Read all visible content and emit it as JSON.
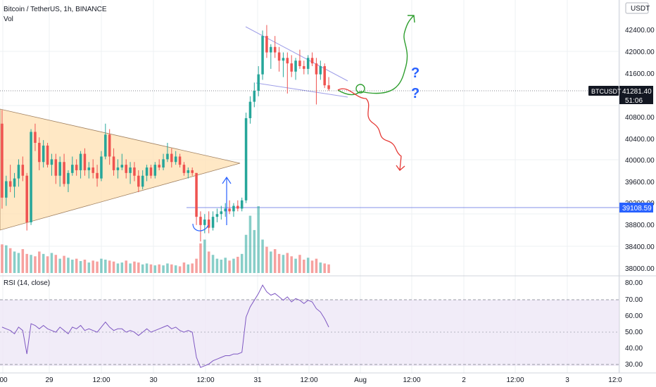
{
  "header": {
    "title": "Bitcoin / TetherUS, 1h, BINANCE",
    "vol_label": "Vol"
  },
  "price_axis": {
    "currency": "USDT",
    "ticks": [
      "42400.00",
      "42000.00",
      "41600.00",
      "40800.00",
      "40400.00",
      "40000.00",
      "39600.00",
      "39200.00",
      "38800.00",
      "38400.00",
      "38000.00"
    ]
  },
  "rsi": {
    "label": "RSI (14, close)",
    "ticks": [
      "80.00",
      "70.00",
      "60.00",
      "50.00",
      "40.00",
      "30.00"
    ]
  },
  "time_axis": {
    "ticks": [
      "00",
      "29",
      "12:00",
      "30",
      "12:00",
      "31",
      "12:00",
      "Aug",
      "12:00",
      "2",
      "12:00",
      "3",
      "12:0"
    ]
  },
  "current_price": {
    "symbol": "BTCUSDT",
    "price": "41281.40",
    "countdown": "51:06"
  },
  "hline_price": "39108.59",
  "annotation_marks": [
    "?",
    "?"
  ],
  "colors": {
    "up": "#26a69a",
    "down": "#ef5350",
    "vol_up": "#80cbc4",
    "vol_down": "#f7a9a7",
    "rsi_line": "#7e57c2",
    "rsi_band": "#ede7f6",
    "triangle_fill": "#ffe0b2",
    "wedge": "#9e9ee8",
    "bullish_arrow": "#2e9e2e",
    "bearish_arrow": "#e53935",
    "blue_mark": "#2962ff"
  },
  "chart_data": {
    "type": "candlestick",
    "series": [
      {
        "name": "price",
        "ohlc": [
          [
            40650,
            40900,
            39100,
            39300
          ],
          [
            39300,
            39700,
            39150,
            39600
          ],
          [
            39600,
            39900,
            39400,
            39500
          ],
          [
            39500,
            39750,
            39300,
            39650
          ],
          [
            39650,
            40000,
            39500,
            39900
          ],
          [
            39900,
            40050,
            39600,
            39700
          ],
          [
            39700,
            39750,
            38700,
            38850
          ],
          [
            38850,
            40550,
            38800,
            40500
          ],
          [
            40500,
            40650,
            40150,
            40300
          ],
          [
            40300,
            40400,
            39800,
            39950
          ],
          [
            39950,
            40350,
            39850,
            40250
          ],
          [
            40250,
            40300,
            39850,
            39900
          ],
          [
            39900,
            40100,
            39700,
            40000
          ],
          [
            40000,
            40100,
            39550,
            39700
          ],
          [
            39700,
            40050,
            39500,
            39950
          ],
          [
            39950,
            40100,
            39500,
            39550
          ],
          [
            39550,
            39800,
            39400,
            39750
          ],
          [
            39750,
            40050,
            39700,
            39900
          ],
          [
            39900,
            40000,
            39700,
            39800
          ],
          [
            39800,
            40150,
            39650,
            40100
          ],
          [
            40100,
            40200,
            39700,
            39800
          ],
          [
            39800,
            39950,
            39650,
            39850
          ],
          [
            39850,
            40000,
            39650,
            39750
          ],
          [
            39750,
            39900,
            39500,
            39650
          ],
          [
            39650,
            40150,
            39600,
            40050
          ],
          [
            40050,
            40650,
            40000,
            40450
          ],
          [
            40450,
            40550,
            39900,
            40050
          ],
          [
            40050,
            40200,
            39700,
            39800
          ],
          [
            39800,
            40000,
            39650,
            39850
          ],
          [
            39850,
            40100,
            39800,
            39900
          ],
          [
            39900,
            40000,
            39650,
            39750
          ],
          [
            39750,
            39950,
            39550,
            39850
          ],
          [
            39850,
            39950,
            39600,
            39700
          ],
          [
            39700,
            39800,
            39400,
            39500
          ],
          [
            39500,
            39800,
            39450,
            39700
          ],
          [
            39700,
            39900,
            39600,
            39850
          ],
          [
            39850,
            39900,
            39650,
            39700
          ],
          [
            39700,
            39950,
            39650,
            39900
          ],
          [
            39900,
            40000,
            39800,
            39850
          ],
          [
            39850,
            40100,
            39800,
            40000
          ],
          [
            40000,
            40300,
            39950,
            40100
          ],
          [
            40100,
            40200,
            39850,
            39950
          ],
          [
            39950,
            40150,
            39900,
            40050
          ],
          [
            40050,
            40100,
            39850,
            39900
          ],
          [
            39900,
            39950,
            39700,
            39750
          ],
          [
            39750,
            39850,
            39650,
            39800
          ],
          [
            39800,
            39850,
            39700,
            39750
          ],
          [
            39750,
            39750,
            38800,
            38950
          ],
          [
            38950,
            39050,
            38500,
            38800
          ],
          [
            38800,
            39000,
            38650,
            38900
          ],
          [
            38900,
            39050,
            38650,
            38750
          ],
          [
            38750,
            39050,
            38700,
            38950
          ],
          [
            38950,
            39100,
            38850,
            39000
          ],
          [
            39000,
            39150,
            38900,
            39050
          ],
          [
            39050,
            39200,
            38950,
            39100
          ],
          [
            39100,
            39250,
            39000,
            39050
          ],
          [
            39050,
            39200,
            38950,
            39150
          ],
          [
            39150,
            39250,
            39050,
            39100
          ],
          [
            39100,
            39300,
            39050,
            39250
          ],
          [
            39250,
            40850,
            39200,
            40750
          ],
          [
            40750,
            41150,
            40650,
            41050
          ],
          [
            41050,
            41400,
            40950,
            41250
          ],
          [
            41250,
            41700,
            41150,
            41550
          ],
          [
            41550,
            42350,
            41450,
            42250
          ],
          [
            42250,
            42450,
            41850,
            41950
          ],
          [
            41950,
            42100,
            41650,
            42050
          ],
          [
            42050,
            42250,
            41850,
            41950
          ],
          [
            41950,
            42050,
            41600,
            41800
          ],
          [
            41800,
            41950,
            41500,
            41850
          ],
          [
            41850,
            41950,
            41200,
            41750
          ],
          [
            41750,
            41900,
            41500,
            41600
          ],
          [
            41600,
            41850,
            41450,
            41800
          ],
          [
            41800,
            42000,
            41650,
            41700
          ],
          [
            41700,
            41800,
            41550,
            41650
          ],
          [
            41650,
            41900,
            41550,
            41850
          ],
          [
            41850,
            41950,
            41700,
            41750
          ],
          [
            41750,
            41850,
            41000,
            41550
          ],
          [
            41550,
            41800,
            41450,
            41700
          ],
          [
            41700,
            41750,
            41300,
            41350
          ],
          [
            41350,
            41500,
            41250,
            41281
          ]
        ]
      },
      {
        "name": "Vol",
        "values": [
          60,
          58,
          52,
          45,
          42,
          50,
          40,
          38,
          35,
          45,
          40,
          35,
          42,
          38,
          30,
          36,
          32,
          28,
          30,
          25,
          28,
          22,
          26,
          24,
          30,
          28,
          26,
          24,
          20,
          22,
          26,
          20,
          24,
          22,
          18,
          20,
          18,
          16,
          18,
          16,
          20,
          18,
          16,
          14,
          22,
          18,
          20,
          30,
          62,
          70,
          45,
          38,
          30,
          28,
          32,
          26,
          30,
          34,
          40,
          80,
          120,
          90,
          140,
          70,
          55,
          45,
          50,
          40,
          38,
          42,
          35,
          30,
          38,
          28,
          32,
          26,
          30,
          22,
          20,
          18
        ]
      },
      {
        "name": "RSI",
        "values": [
          54,
          53,
          52,
          50,
          54,
          52,
          38,
          56,
          55,
          53,
          55,
          53,
          52,
          51,
          54,
          52,
          50,
          54,
          53,
          55,
          52,
          53,
          52,
          51,
          54,
          57,
          54,
          52,
          53,
          53,
          51,
          52,
          51,
          49,
          51,
          53,
          51,
          52,
          53,
          54,
          55,
          53,
          54,
          52,
          51,
          52,
          51,
          36,
          30,
          31,
          32,
          34,
          35,
          36,
          37,
          37,
          38,
          38,
          39,
          60,
          66,
          70,
          74,
          79,
          75,
          73,
          74,
          72,
          70,
          72,
          69,
          71,
          70,
          68,
          70,
          69,
          65,
          63,
          59,
          54
        ]
      }
    ],
    "ylim": [
      37950,
      42650
    ],
    "rsi_ylim": [
      28,
      82
    ],
    "rsi_bands": [
      30,
      50,
      70
    ],
    "up_color": "#26a69a",
    "down_color": "#ef5350"
  }
}
